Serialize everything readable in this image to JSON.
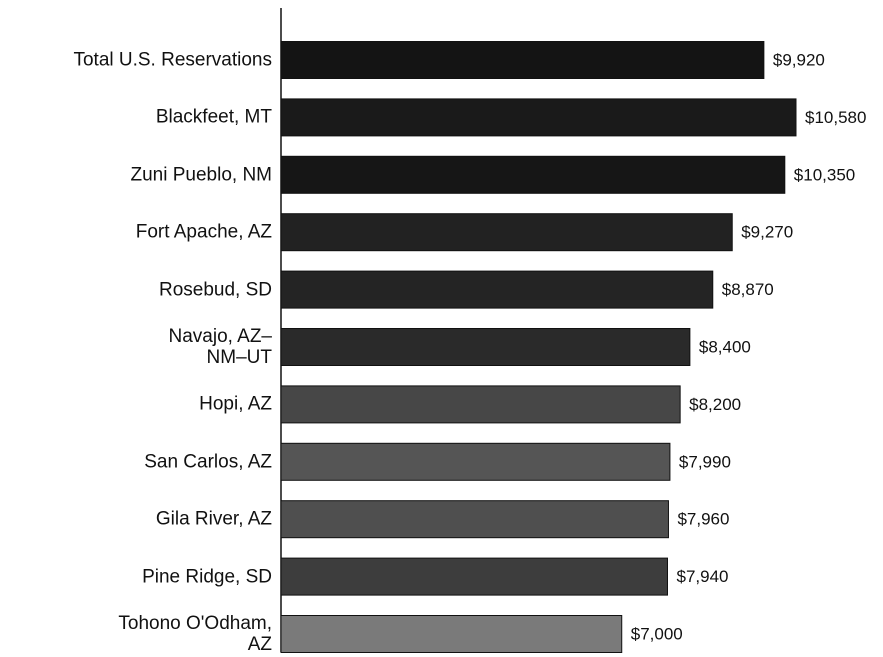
{
  "chart_data": {
    "type": "hbar",
    "categories": [
      "Total U.S. Reservations",
      "Blackfeet, MT",
      "Zuni Pueblo, NM",
      "Fort Apache, AZ",
      "Rosebud, SD",
      "Navajo, AZ–\nNM–UT",
      "Hopi, AZ",
      "San Carlos, AZ",
      "Gila River, AZ",
      "Pine Ridge, SD",
      "Tohono O'Odham,\nAZ"
    ],
    "values": [
      9920,
      10580,
      10350,
      9270,
      8870,
      8400,
      8200,
      7990,
      7960,
      7940,
      7000
    ],
    "value_labels": [
      "$9,920",
      "$10,580",
      "$10,350",
      "$9,270",
      "$8,870",
      "$8,400",
      "$8,200",
      "$7,990",
      "$7,960",
      "$7,940",
      "$7,000"
    ],
    "colors": [
      "#141414",
      "#1a1a1a",
      "#161616",
      "#222222",
      "#242424",
      "#2a2a2a",
      "#474747",
      "#555555",
      "#4f4f4f",
      "#3d3d3d",
      "#7a7a7a"
    ]
  }
}
